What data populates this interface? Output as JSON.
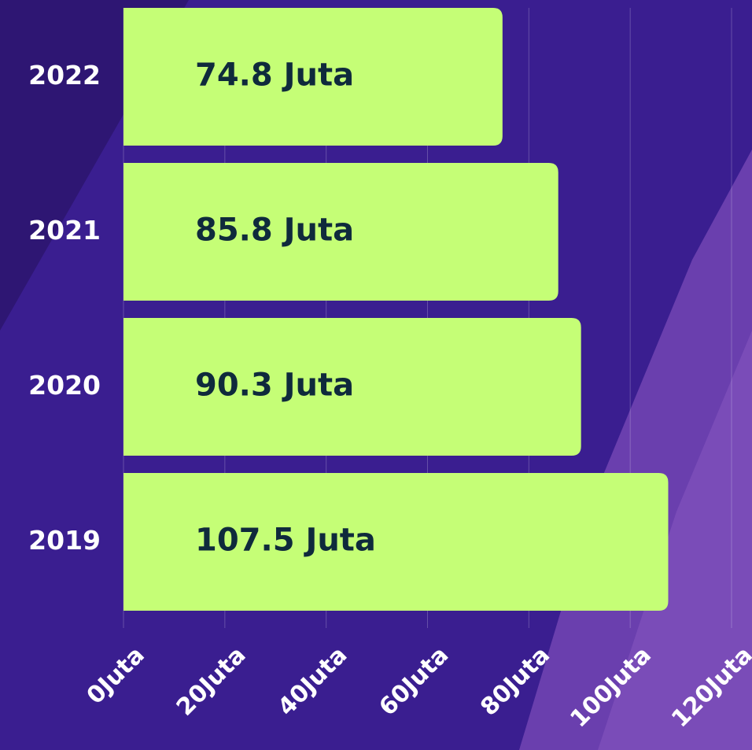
{
  "chart_data": {
    "type": "bar",
    "orientation": "horizontal",
    "categories": [
      "2022",
      "2021",
      "2020",
      "2019"
    ],
    "values": [
      74.8,
      85.8,
      90.3,
      107.5
    ],
    "value_labels": [
      "74.8 Juta",
      "85.8 Juta",
      "90.3 Juta",
      "107.5 Juta"
    ],
    "color": "#c5fe76",
    "xlim": [
      0,
      120
    ],
    "xticks": [
      {
        "value": 0,
        "label": "0Juta"
      },
      {
        "value": 20,
        "label": "20Juta"
      },
      {
        "value": 40,
        "label": "40Juta"
      },
      {
        "value": 60,
        "label": "60Juta"
      },
      {
        "value": 80,
        "label": "80Juta"
      },
      {
        "value": 100,
        "label": "100Juta"
      },
      {
        "value": 120,
        "label": "120Juta"
      }
    ],
    "grid": true
  }
}
